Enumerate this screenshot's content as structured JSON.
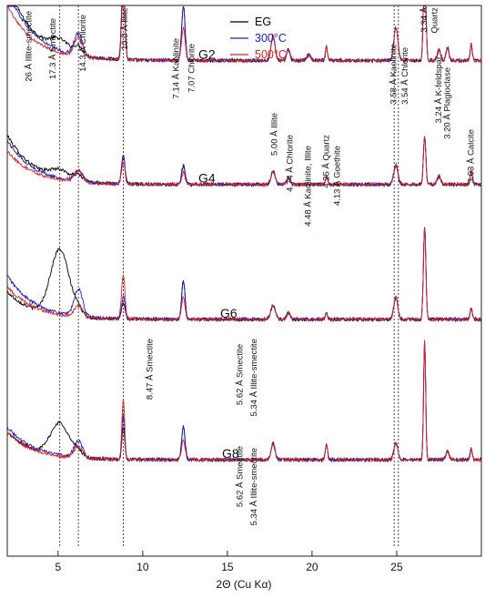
{
  "chart_data": {
    "type": "line",
    "xlabel": "2Θ (Cu Kα)",
    "xlim": [
      2,
      30
    ],
    "xticks": [
      5,
      10,
      15,
      20,
      25
    ],
    "series": [
      {
        "name": "EG",
        "color": "#000000"
      },
      {
        "name": "300°C",
        "color": "#1a1acc"
      },
      {
        "name": "500°C",
        "color": "#e02020"
      }
    ],
    "samples": [
      {
        "label": "G2",
        "baseline": 0.9
      },
      {
        "label": "G4",
        "baseline": 0.675
      },
      {
        "label": "G6",
        "baseline": 0.43
      },
      {
        "label": "G8",
        "baseline": 0.175
      }
    ],
    "reference_lines_2theta": [
      5.1,
      6.2,
      8.85,
      24.85,
      25.1
    ],
    "peak_labels": [
      {
        "text": "26 Å  Illite-smectite",
        "x": 3.3
      },
      {
        "text": "17.3 Å  Smectite",
        "x": 4.7
      },
      {
        "text": "14.3 Å  Chlorite",
        "x": 6.5
      },
      {
        "text": "10.0 Å   Illite",
        "x": 8.95
      },
      {
        "text": "7.14 Å  Kaolinite",
        "x": 12.0
      },
      {
        "text": "7.07  Chlorite",
        "x": 12.9
      },
      {
        "text": "5.00 Å  Illite",
        "x": 17.8
      },
      {
        "text": "4.74 Å  Chlorite",
        "x": 18.7
      },
      {
        "text": "4.48 Å  Kaolinite, Illite",
        "x": 19.8
      },
      {
        "text": "4.25 Å  Quartz",
        "x": 20.85
      },
      {
        "text": "4.13 Å  Goethite",
        "x": 21.5
      },
      {
        "text": "3.58 Å  Kaolinite",
        "x": 24.85
      },
      {
        "text": "3.54 Å  Chlorite",
        "x": 25.5
      },
      {
        "text": "3.34 Å",
        "x": 26.65
      },
      {
        "text": "Quartz",
        "x": 27.25
      },
      {
        "text": "3.24 Å  K-feldspar",
        "x": 27.5
      },
      {
        "text": "3.20 Å  Plagioclase",
        "x": 28.0
      },
      {
        "text": "3.03 Å  Calcite",
        "x": 29.4
      },
      {
        "text": "8.47 Å  Smectite",
        "x": 10.45
      },
      {
        "text": "5.62 Å  Smectite",
        "x": 15.75
      },
      {
        "text": "5.34 Å  Illite-smectite",
        "x": 16.6
      },
      {
        "text": "5.62 Å  Smectite",
        "x": 15.75
      },
      {
        "text": "5.34 Å  Illite-smectite",
        "x": 16.6
      }
    ],
    "grid": false,
    "legend_position": "top-center"
  }
}
